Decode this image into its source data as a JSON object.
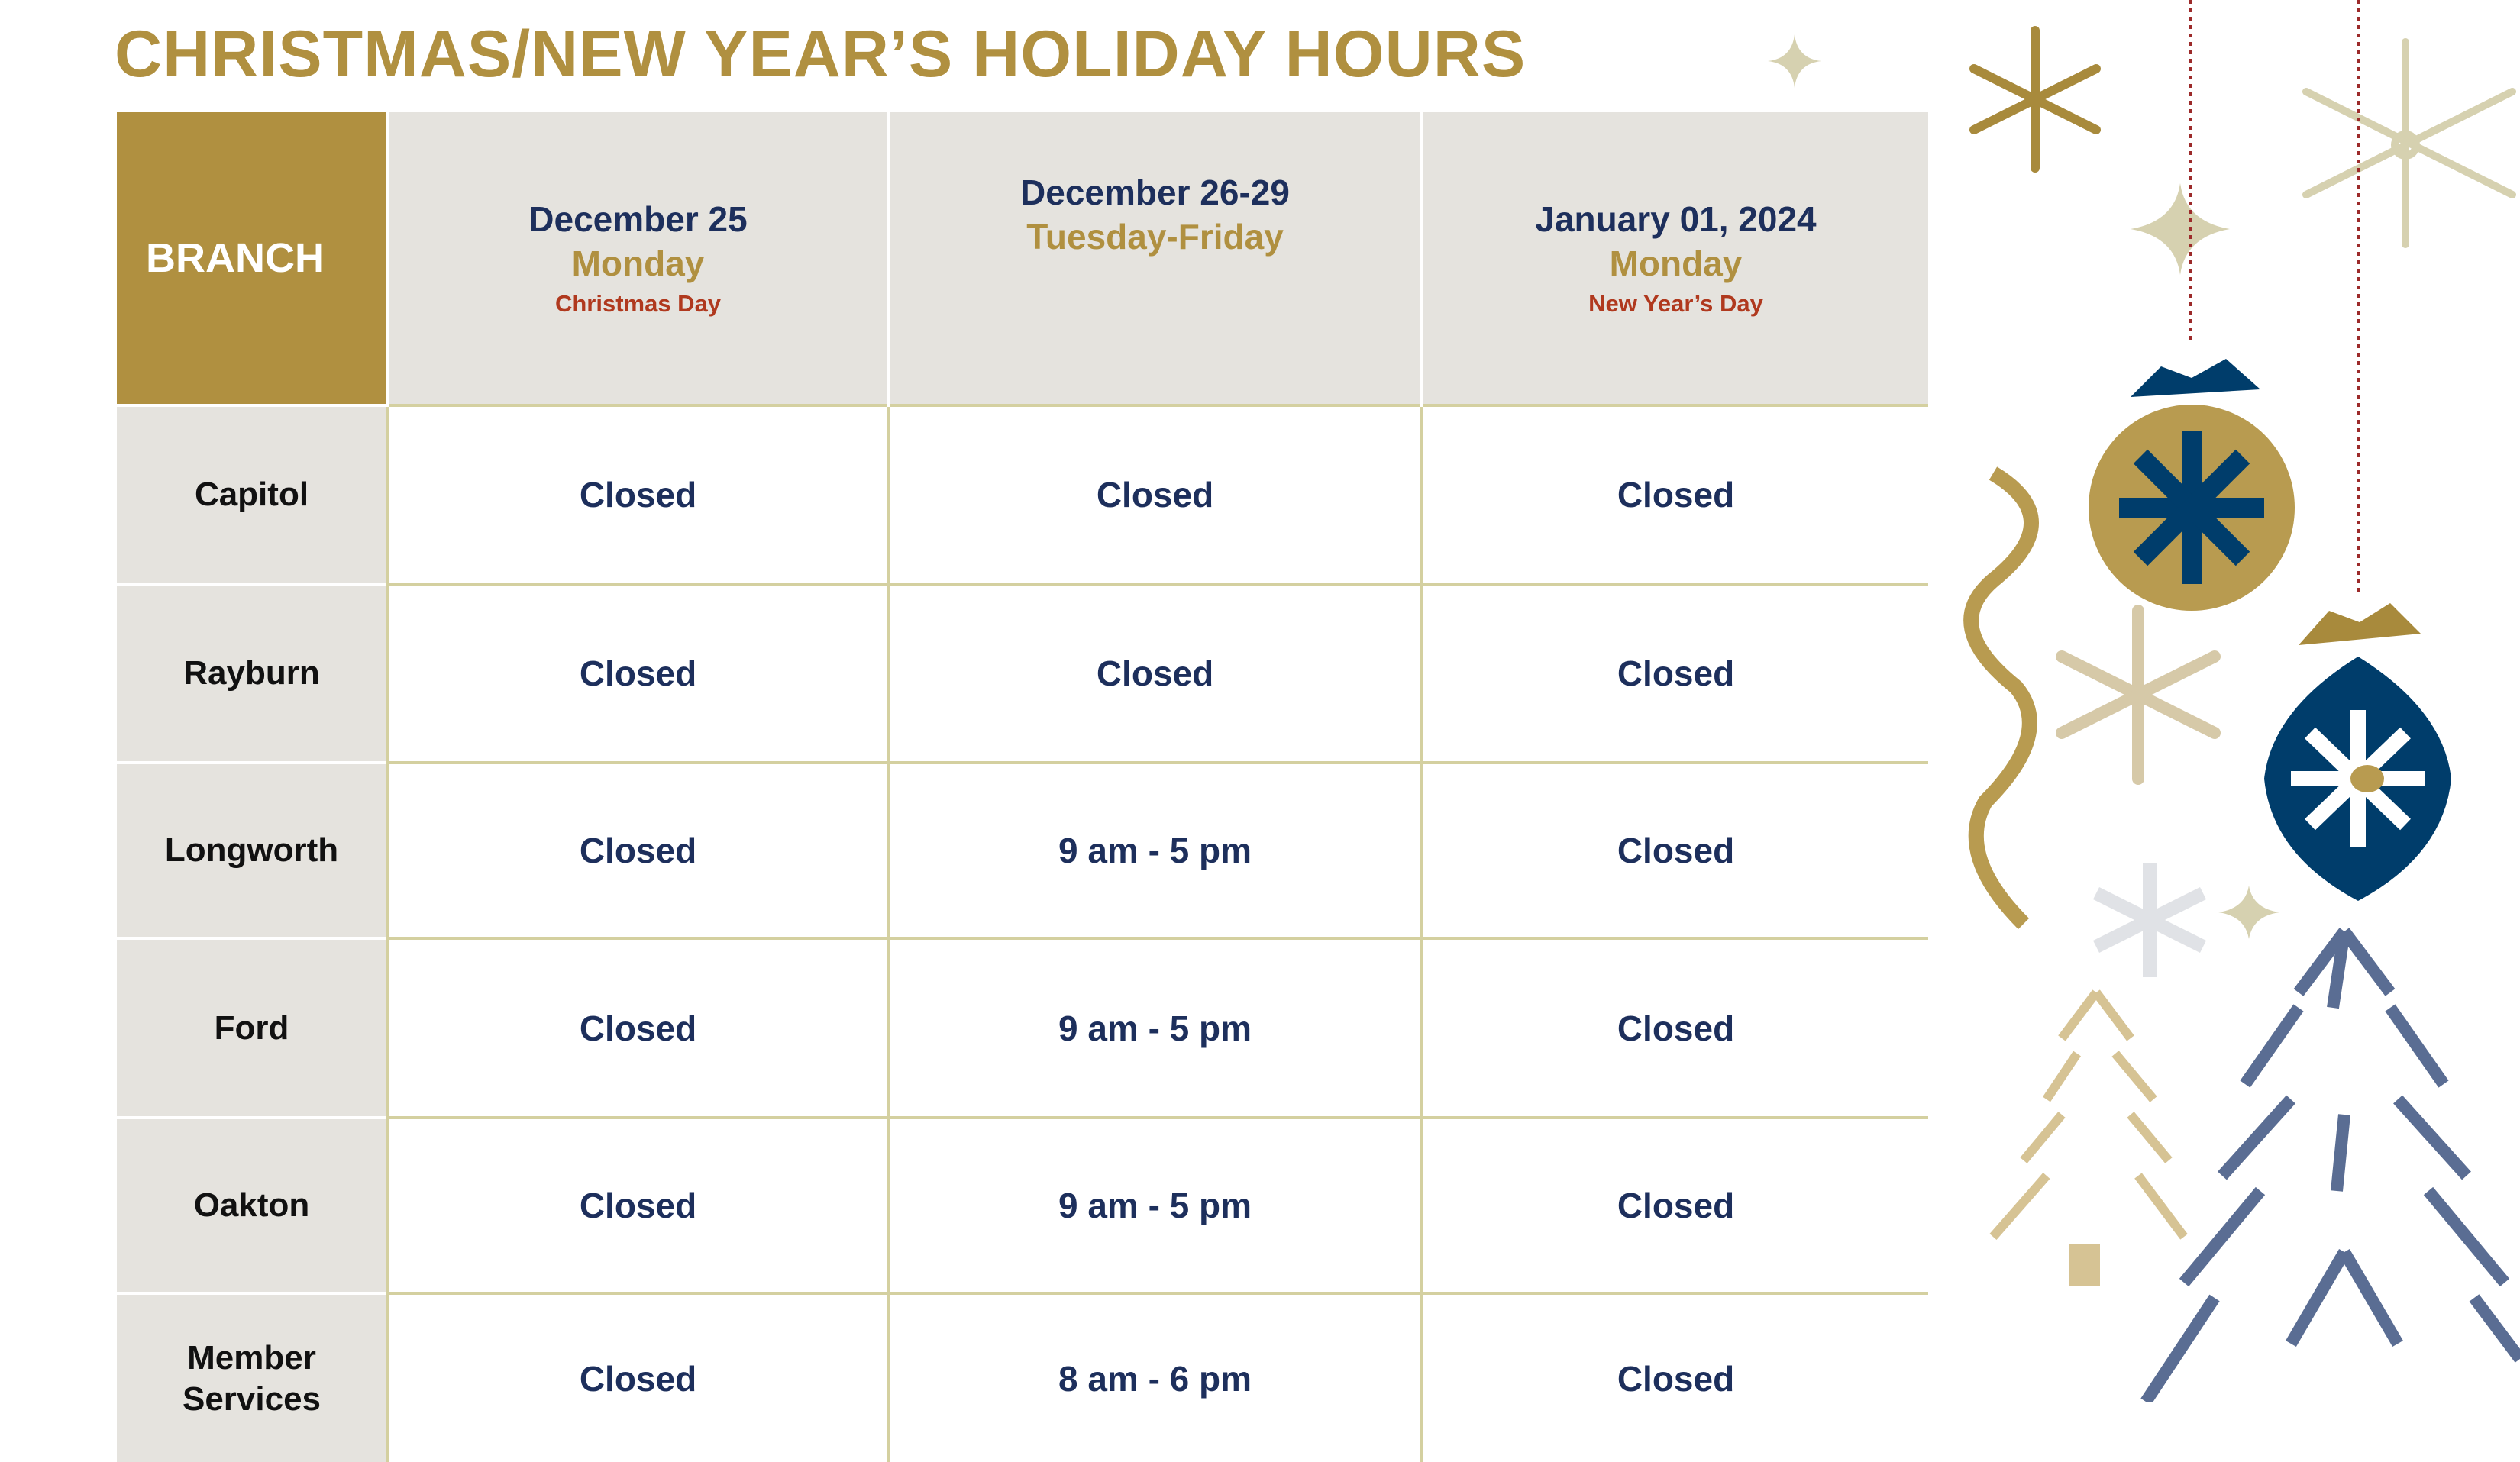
{
  "title": "CHRISTMAS/NEW YEAR’S HOLIDAY HOURS",
  "table": {
    "branch_header": "BRANCH",
    "columns": [
      {
        "date": "December 25",
        "day": "Monday",
        "holiday": "Christmas Day"
      },
      {
        "date": "December 26-29",
        "day": "Tuesday-Friday",
        "holiday": ""
      },
      {
        "date": "January 01, 2024",
        "day": "Monday",
        "holiday": "New Year’s Day"
      }
    ],
    "rows": [
      {
        "branch": "Capitol",
        "hours": [
          "Closed",
          "Closed",
          "Closed"
        ]
      },
      {
        "branch": "Rayburn",
        "hours": [
          "Closed",
          "Closed",
          "Closed"
        ]
      },
      {
        "branch": "Longworth",
        "hours": [
          "Closed",
          "9 am - 5 pm",
          "Closed"
        ]
      },
      {
        "branch": "Ford",
        "hours": [
          "Closed",
          "9 am - 5 pm",
          "Closed"
        ]
      },
      {
        "branch": "Oakton",
        "hours": [
          "Closed",
          "9 am - 5 pm",
          "Closed"
        ]
      },
      {
        "branch": "Member Services",
        "hours": [
          "Closed",
          "8 am - 6 pm",
          "Closed"
        ]
      }
    ]
  },
  "colors": {
    "gold": "#b09040",
    "navy": "#1d2f5c",
    "holiday_red": "#b0391e",
    "header_gray": "#e5e3de",
    "ornament_blue": "#003d6b"
  },
  "decorations": [
    "snowflake-icon",
    "ornament-icon",
    "christmas-tree-icon",
    "sparkle-icon",
    "ribbon-icon"
  ]
}
